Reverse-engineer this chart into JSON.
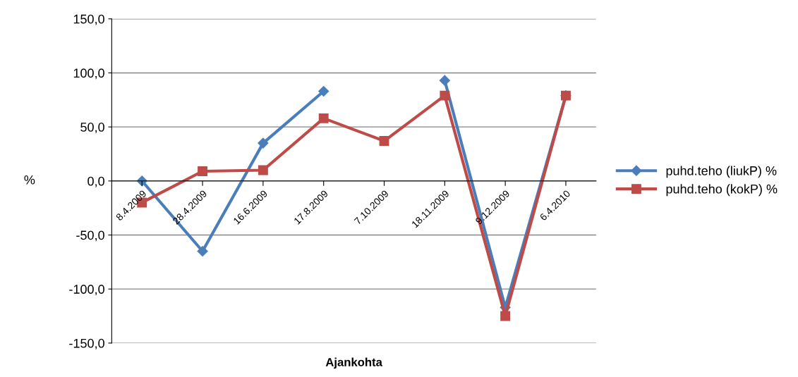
{
  "chart_data": {
    "type": "line",
    "xlabel": "Ajankohta",
    "ylabel": "%",
    "categories": [
      "8.4.2009",
      "28.4.2009",
      "16.6.2009",
      "17.8.2009",
      "7.10.2009",
      "18.11.2009",
      "9.12.2009",
      "6.4.2010"
    ],
    "series": [
      {
        "name": "puhd.teho (liukP) %",
        "color": "#4a7ebb",
        "marker": "diamond",
        "values": [
          0,
          -65,
          35,
          83,
          null,
          93,
          -117,
          79
        ]
      },
      {
        "name": "puhd.teho (kokP) %",
        "color": "#be4b48",
        "marker": "square",
        "values": [
          -20,
          9,
          10,
          58,
          37,
          79,
          -125,
          79
        ]
      }
    ],
    "ylim": [
      -150,
      150
    ],
    "yticks": [
      {
        "value": -150,
        "label": "-150,0"
      },
      {
        "value": -100,
        "label": "-100,0"
      },
      {
        "value": -50,
        "label": "-50,0"
      },
      {
        "value": 0,
        "label": "0,0"
      },
      {
        "value": 50,
        "label": "50,0"
      },
      {
        "value": 100,
        "label": "100,0"
      },
      {
        "value": 150,
        "label": "150,0"
      }
    ],
    "grid": "y",
    "legend": "right",
    "line_style": "solid"
  }
}
